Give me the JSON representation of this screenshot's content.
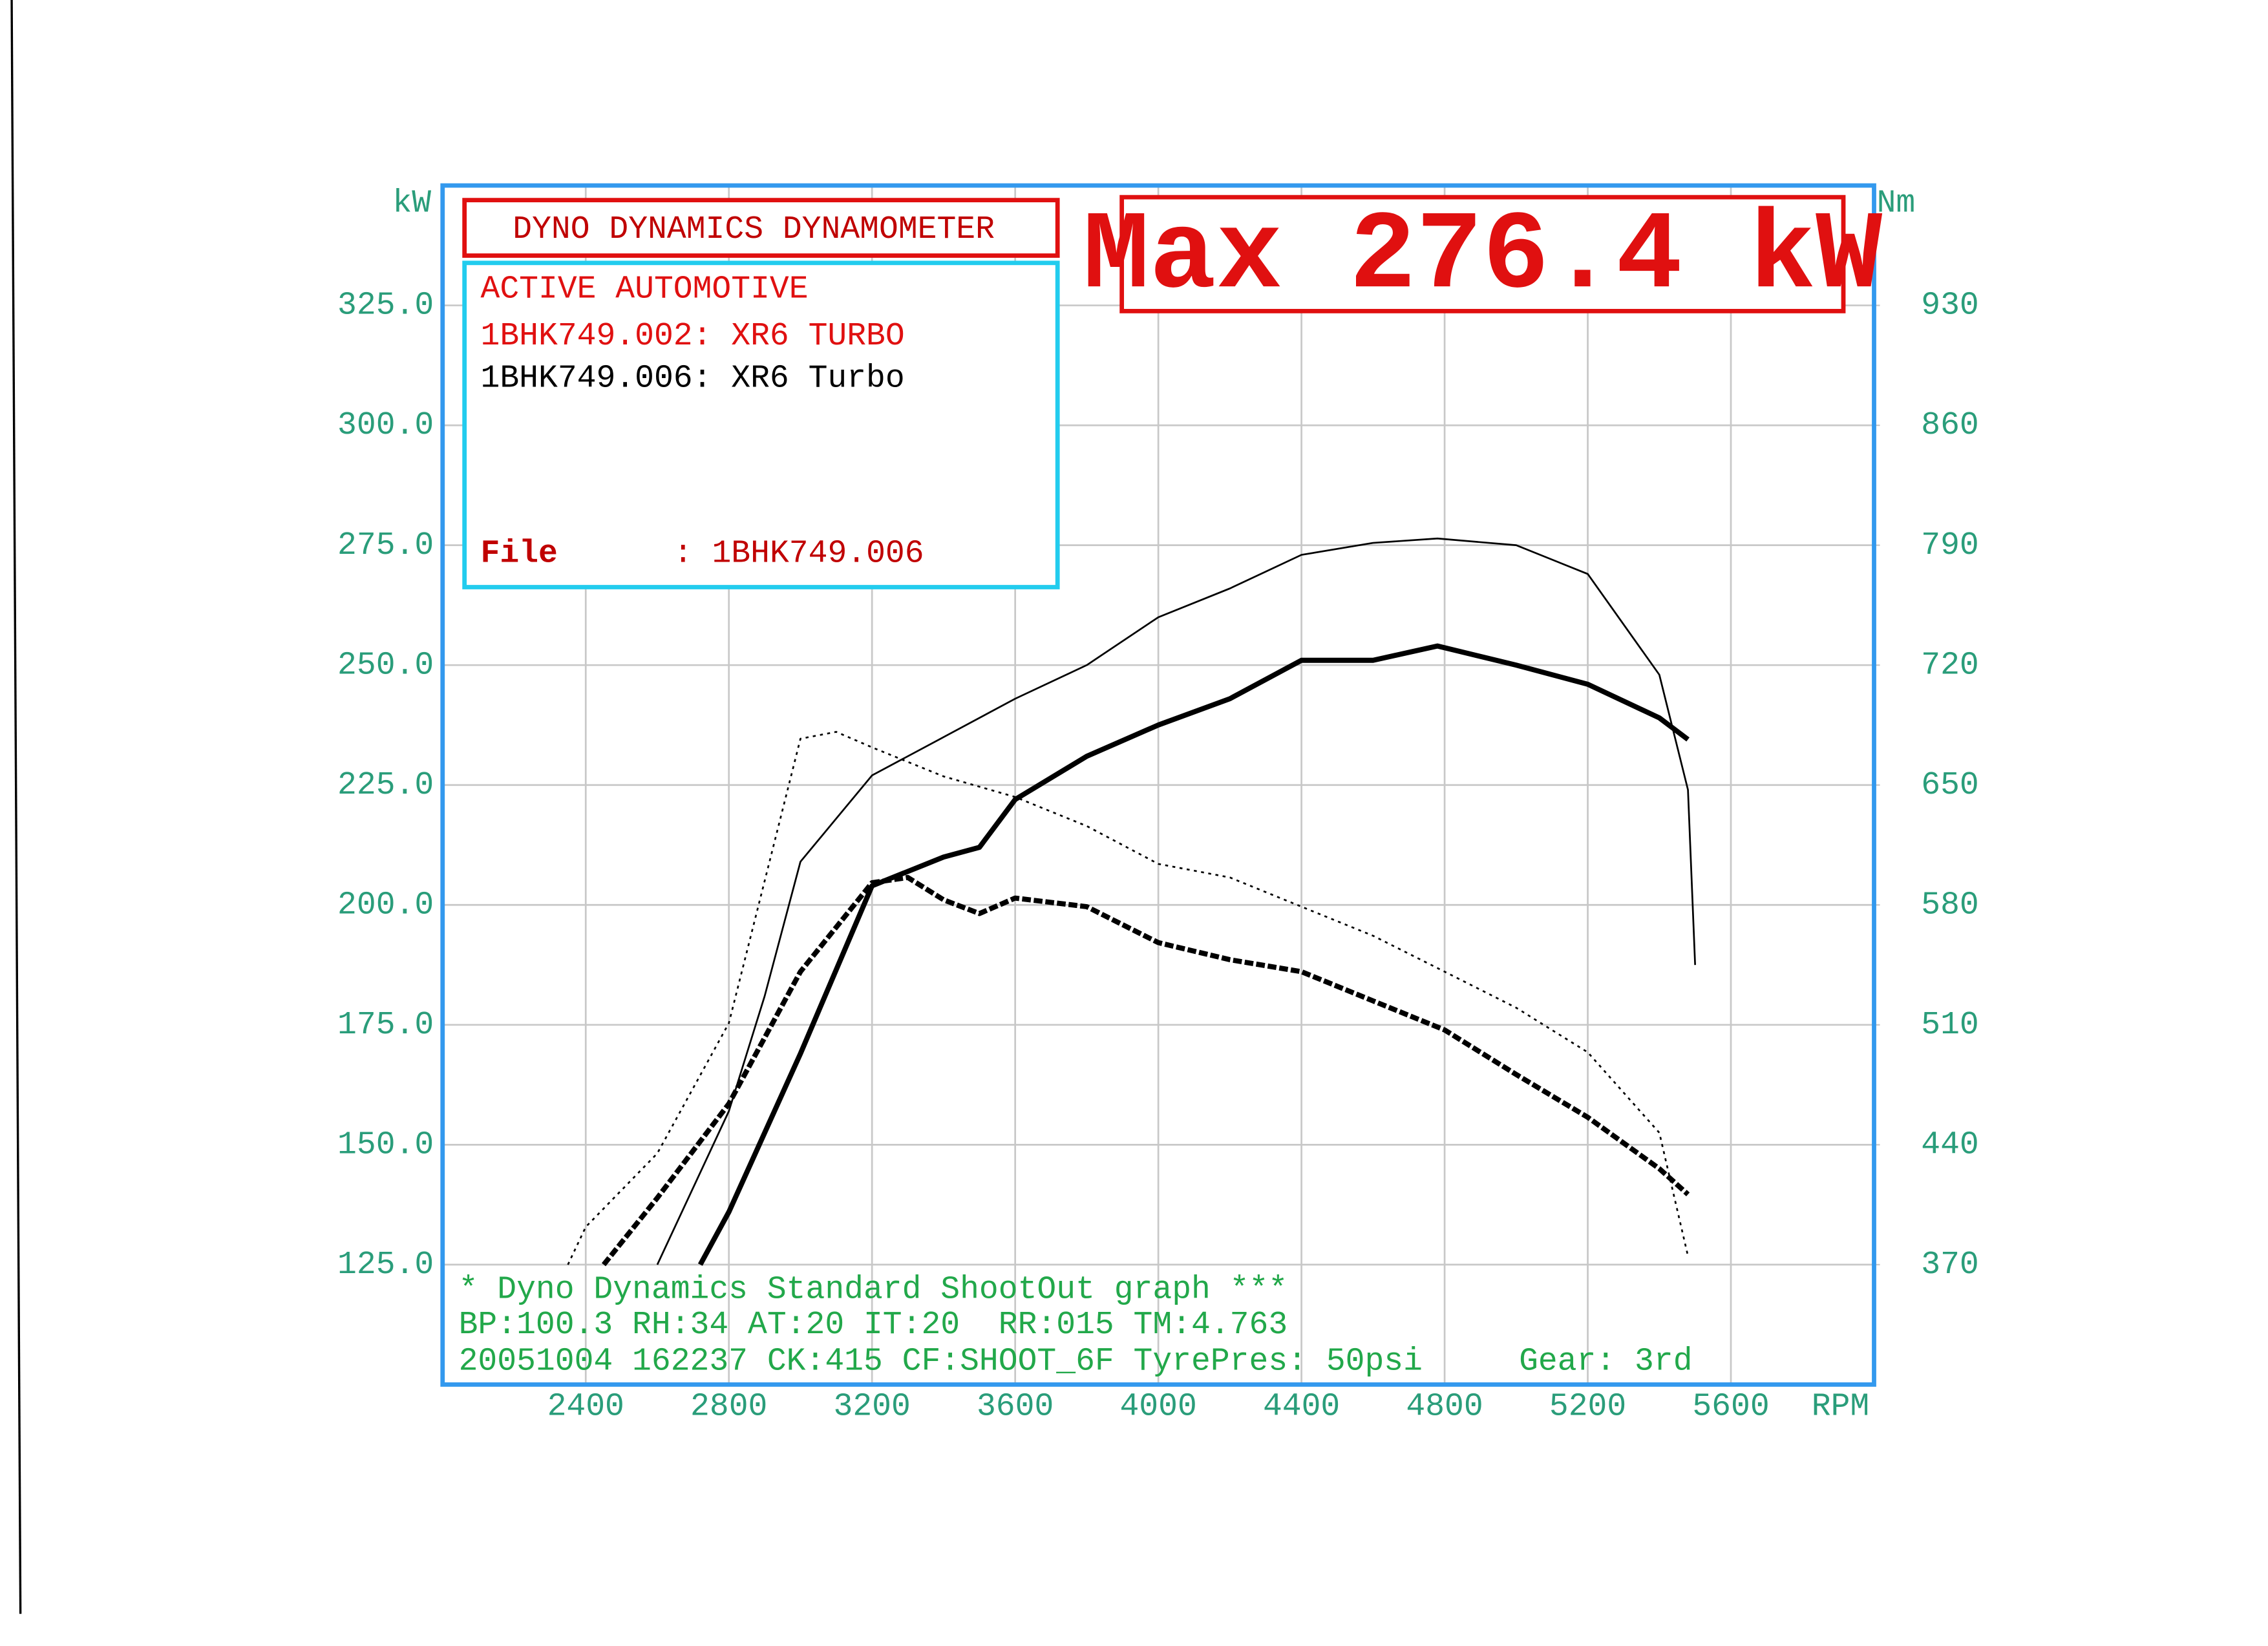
{
  "chart_data": {
    "type": "line",
    "header": "DYNO DYNAMICS DYNAMOMETER",
    "customer": "ACTIVE AUTOMOTIVE",
    "file_label": "File",
    "file_value": ": 1BHK749.006",
    "max_label": "Max 276.4 kW",
    "y_label": "kW",
    "y2_label": "Nm",
    "x_label": "RPM",
    "footer": [
      "* Dyno Dynamics Standard ShootOut graph ***",
      "BP:100.3 RH:34 AT:20 IT:20  RR:015 TM:4.763",
      "20051004 162237 CK:415 CF:SHOOT_6F TyrePres: 50psi     Gear: 3rd"
    ],
    "xlim": [
      2000,
      6000
    ],
    "xticks": [
      2400,
      2800,
      3200,
      3600,
      4000,
      4400,
      4800,
      5200,
      5600
    ],
    "ylim": [
      100,
      350
    ],
    "yticks": [
      {
        "value": 125,
        "label": "125.0"
      },
      {
        "value": 150,
        "label": "150.0"
      },
      {
        "value": 175,
        "label": "175.0"
      },
      {
        "value": 200,
        "label": "200.0"
      },
      {
        "value": 225,
        "label": "225.0"
      },
      {
        "value": 250,
        "label": "250.0"
      },
      {
        "value": 275,
        "label": "275.0"
      },
      {
        "value": 300,
        "label": "300.0"
      },
      {
        "value": 325,
        "label": "325.0"
      }
    ],
    "y2lim": [
      300,
      1000
    ],
    "y2ticks": [
      370,
      440,
      510,
      580,
      650,
      720,
      790,
      860,
      930
    ],
    "grid": true,
    "runs": [
      {
        "label": "1BHK749.002: XR6 TURBO",
        "label_color": "#e01010",
        "color": "#000000",
        "width": 1.2,
        "power": {
          "x": [
            2600,
            2800,
            2900,
            3000,
            3200,
            3400,
            3600,
            3800,
            4000,
            4200,
            4400,
            4600,
            4780,
            5000,
            5200,
            5400,
            5480,
            5500
          ],
          "values": [
            125,
            157,
            181,
            209,
            227,
            235,
            243,
            250,
            260,
            266,
            273,
            275.5,
            276.4,
            275,
            269,
            248,
            224,
            187.5
          ]
        },
        "torque": {
          "x": [
            2350,
            2400,
            2600,
            2800,
            3000,
            3100,
            3200,
            3400,
            3600,
            3800,
            4000,
            4200,
            4400,
            4600,
            4800,
            5000,
            5200,
            5400,
            5480
          ],
          "values": [
            370,
            392,
            435,
            511,
            677,
            681,
            672,
            655,
            643,
            626,
            604,
            596,
            579,
            562,
            541,
            520,
            494,
            447,
            375
          ]
        },
        "torque_dash": "2 3"
      },
      {
        "label": "1BHK749.006: XR6 Turbo",
        "label_color": "#000000",
        "color": "#000000",
        "width": 3.5,
        "power": {
          "x": [
            2720,
            2800,
            3000,
            3200,
            3400,
            3500,
            3600,
            3800,
            4000,
            4200,
            4400,
            4600,
            4780,
            5000,
            5200,
            5400,
            5480
          ],
          "values": [
            125,
            136,
            169,
            204,
            210,
            212,
            222,
            231,
            237.5,
            243,
            251,
            251,
            254,
            250,
            246,
            239,
            234.5
          ]
        },
        "torque": {
          "x": [
            2450,
            2600,
            2800,
            3000,
            3200,
            3300,
            3400,
            3500,
            3600,
            3800,
            4000,
            4200,
            4400,
            4600,
            4800,
            5000,
            5200,
            5400,
            5480
          ],
          "values": [
            370,
            409,
            464,
            541,
            593,
            596,
            583,
            575,
            584,
            579,
            558,
            548,
            541,
            524,
            507,
            481,
            456,
            426,
            411
          ]
        },
        "torque_dash": "6 2"
      }
    ]
  }
}
